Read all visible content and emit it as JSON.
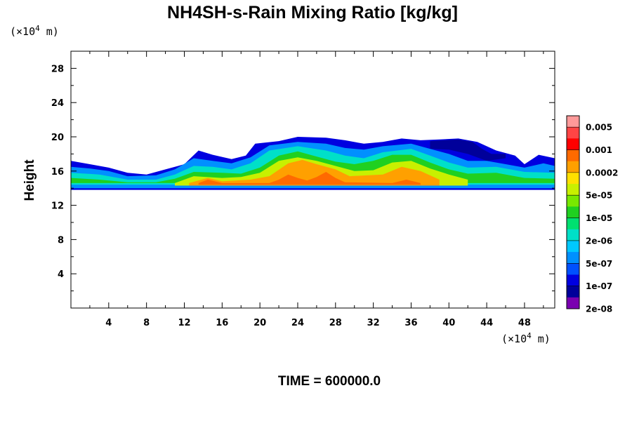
{
  "chart_data": {
    "type": "heatmap",
    "title": "NH4SH-s-Rain Mixing Ratio [kg/kg]",
    "ylabel": "Height",
    "xlabel": "",
    "x_unit": {
      "prefix": "(×10",
      "exp": "4",
      "suffix": " m)"
    },
    "y_unit": {
      "prefix": "(×10",
      "exp": "4",
      "suffix": " m)"
    },
    "xlim": [
      0,
      51.2
    ],
    "ylim": [
      0,
      30
    ],
    "x_ticks": [
      4,
      8,
      12,
      16,
      20,
      24,
      28,
      32,
      36,
      40,
      44,
      48
    ],
    "y_ticks": [
      4,
      8,
      12,
      16,
      20,
      24,
      28
    ],
    "x_tick_labels": [
      "4",
      "8",
      "12",
      "16",
      "20",
      "24",
      "28",
      "32",
      "36",
      "40",
      "44",
      "48"
    ],
    "y_tick_labels": [
      "4",
      "8",
      "12",
      "16",
      "20",
      "24",
      "28"
    ],
    "grid": false,
    "legend": "colorbar-right",
    "colorbar_labels": [
      "0.005",
      "0.001",
      "0.0002",
      "5e-05",
      "1e-05",
      "2e-06",
      "5e-07",
      "1e-07",
      "2e-08"
    ],
    "colorbar_colors": [
      "#ff9a9a",
      "#ff4545",
      "#ff0000",
      "#ff6a00",
      "#ffa000",
      "#ffe000",
      "#c8f000",
      "#78e800",
      "#20d020",
      "#00e070",
      "#00e0c8",
      "#00c8ff",
      "#0090ff",
      "#0050ff",
      "#0000e0",
      "#00009a",
      "#7a00b0"
    ],
    "field": {
      "base_height": 13.8,
      "layers": [
        {
          "level": 1,
          "color": "#0000e0",
          "top": [
            [
              0,
              17.2
            ],
            [
              2,
              16.8
            ],
            [
              4,
              16.4
            ],
            [
              6,
              15.8
            ],
            [
              8,
              15.6
            ],
            [
              10,
              16.2
            ],
            [
              12,
              16.8
            ],
            [
              13.5,
              18.4
            ],
            [
              15,
              17.9
            ],
            [
              17,
              17.4
            ],
            [
              18.5,
              17.8
            ],
            [
              19.5,
              19.2
            ],
            [
              22,
              19.5
            ],
            [
              24,
              20.0
            ],
            [
              27,
              19.9
            ],
            [
              29,
              19.6
            ],
            [
              31,
              19.2
            ],
            [
              33,
              19.4
            ],
            [
              35,
              19.8
            ],
            [
              37,
              19.6
            ],
            [
              39,
              19.7
            ],
            [
              41,
              19.8
            ],
            [
              43,
              19.4
            ],
            [
              45,
              18.4
            ],
            [
              47,
              17.8
            ],
            [
              48,
              16.8
            ],
            [
              49.5,
              17.9
            ],
            [
              51.2,
              17.5
            ]
          ],
          "bottom": [
            [
              0,
              13.8
            ],
            [
              51.2,
              13.8
            ]
          ]
        },
        {
          "level": 2,
          "color": "#00009a",
          "top": [
            [
              38,
              19.5
            ],
            [
              39.5,
              19.6
            ],
            [
              41,
              19.7
            ],
            [
              42.5,
              19.4
            ],
            [
              43.5,
              18.6
            ],
            [
              44.5,
              18.0
            ],
            [
              46,
              18.0
            ]
          ],
          "bottom": [
            [
              38,
              18.6
            ],
            [
              40,
              18.5
            ],
            [
              42,
              18.0
            ],
            [
              44,
              17.2
            ],
            [
              46,
              17.5
            ]
          ]
        },
        {
          "level": 3,
          "color": "#0090ff",
          "top": [
            [
              0,
              16.5
            ],
            [
              2,
              16.3
            ],
            [
              4,
              16.0
            ],
            [
              6,
              15.4
            ],
            [
              9,
              15.5
            ],
            [
              11,
              16.2
            ],
            [
              13,
              17.5
            ],
            [
              15,
              17.2
            ],
            [
              17,
              16.9
            ],
            [
              19,
              17.6
            ],
            [
              21,
              19.0
            ],
            [
              24,
              19.4
            ],
            [
              27,
              19.2
            ],
            [
              29,
              18.7
            ],
            [
              31,
              18.5
            ],
            [
              33,
              18.9
            ],
            [
              36,
              19.2
            ],
            [
              38,
              18.6
            ],
            [
              40,
              18.0
            ],
            [
              42,
              17.2
            ],
            [
              44,
              17.2
            ],
            [
              46,
              16.8
            ],
            [
              48,
              16.4
            ],
            [
              50,
              16.9
            ],
            [
              51.2,
              16.6
            ]
          ],
          "bottom": [
            [
              0,
              14.0
            ],
            [
              51.2,
              14.0
            ]
          ]
        },
        {
          "level": 4,
          "color": "#00e0c8",
          "top": [
            [
              0,
              15.8
            ],
            [
              3,
              15.6
            ],
            [
              6,
              15.0
            ],
            [
              9,
              15.0
            ],
            [
              11,
              15.6
            ],
            [
              13,
              16.6
            ],
            [
              15,
              16.5
            ],
            [
              17,
              16.2
            ],
            [
              19,
              16.9
            ],
            [
              21,
              18.4
            ],
            [
              24,
              18.9
            ],
            [
              27,
              18.4
            ],
            [
              29,
              17.8
            ],
            [
              31,
              17.5
            ],
            [
              33,
              18.2
            ],
            [
              36,
              18.6
            ],
            [
              38,
              17.8
            ],
            [
              40,
              17.0
            ],
            [
              42,
              16.4
            ],
            [
              45,
              16.5
            ],
            [
              48,
              15.9
            ],
            [
              51.2,
              15.8
            ]
          ],
          "bottom": [
            [
              0,
              14.4
            ],
            [
              51.2,
              14.4
            ]
          ]
        },
        {
          "level": 5,
          "color": "#20d020",
          "top": [
            [
              0,
              15.2
            ],
            [
              3,
              15.0
            ],
            [
              6,
              14.7
            ],
            [
              9,
              14.7
            ],
            [
              11,
              15.1
            ],
            [
              13,
              15.9
            ],
            [
              16,
              15.8
            ],
            [
              18,
              15.7
            ],
            [
              20,
              16.4
            ],
            [
              22,
              17.8
            ],
            [
              24,
              18.3
            ],
            [
              26,
              17.7
            ],
            [
              28,
              17.1
            ],
            [
              30,
              16.8
            ],
            [
              32,
              17.2
            ],
            [
              34,
              17.9
            ],
            [
              36,
              17.9
            ],
            [
              38,
              17.0
            ],
            [
              40,
              16.2
            ],
            [
              42,
              15.7
            ],
            [
              45,
              15.8
            ],
            [
              48,
              15.2
            ],
            [
              51.2,
              15.1
            ]
          ],
          "bottom": [
            [
              0,
              14.6
            ],
            [
              51.2,
              14.6
            ]
          ]
        },
        {
          "level": 6,
          "color": "#c8f000",
          "top": [
            [
              11,
              14.6
            ],
            [
              13,
              15.4
            ],
            [
              16,
              15.2
            ],
            [
              18,
              15.3
            ],
            [
              20,
              15.8
            ],
            [
              22,
              17.2
            ],
            [
              24,
              17.6
            ],
            [
              26,
              17.2
            ],
            [
              28,
              16.6
            ],
            [
              30,
              16.0
            ],
            [
              32,
              16.1
            ],
            [
              34,
              17.0
            ],
            [
              36,
              17.2
            ],
            [
              38,
              16.3
            ],
            [
              40,
              15.6
            ],
            [
              42,
              15.0
            ]
          ],
          "bottom": [
            [
              11,
              14.3
            ],
            [
              42,
              14.3
            ]
          ]
        },
        {
          "level": 7,
          "color": "#ffa000",
          "top": [
            [
              12.5,
              14.6
            ],
            [
              14.5,
              15.2
            ],
            [
              16,
              14.8
            ],
            [
              19,
              15.0
            ],
            [
              21,
              15.4
            ],
            [
              23,
              16.9
            ],
            [
              24.5,
              17.3
            ],
            [
              26,
              16.8
            ],
            [
              28,
              16.2
            ],
            [
              29.5,
              15.4
            ],
            [
              33,
              15.6
            ],
            [
              35,
              16.5
            ],
            [
              37,
              16.0
            ],
            [
              39,
              15.0
            ]
          ],
          "bottom": [
            [
              12.5,
              14.3
            ],
            [
              39,
              14.3
            ]
          ]
        },
        {
          "level": 8,
          "color": "#ff6a00",
          "top": [
            [
              13.5,
              14.6
            ],
            [
              14.5,
              15.0
            ],
            [
              16,
              14.6
            ],
            [
              21,
              14.6
            ],
            [
              22,
              15.0
            ],
            [
              23,
              15.6
            ],
            [
              24,
              15.2
            ],
            [
              25,
              14.9
            ],
            [
              26,
              15.3
            ],
            [
              27,
              15.9
            ],
            [
              28,
              15.2
            ],
            [
              29,
              14.7
            ],
            [
              34,
              14.6
            ],
            [
              35.5,
              15.0
            ],
            [
              37,
              14.6
            ]
          ],
          "bottom": [
            [
              13.5,
              14.4
            ],
            [
              37,
              14.4
            ]
          ]
        }
      ]
    }
  },
  "footer": {
    "time_label": "TIME = 600000.0"
  }
}
